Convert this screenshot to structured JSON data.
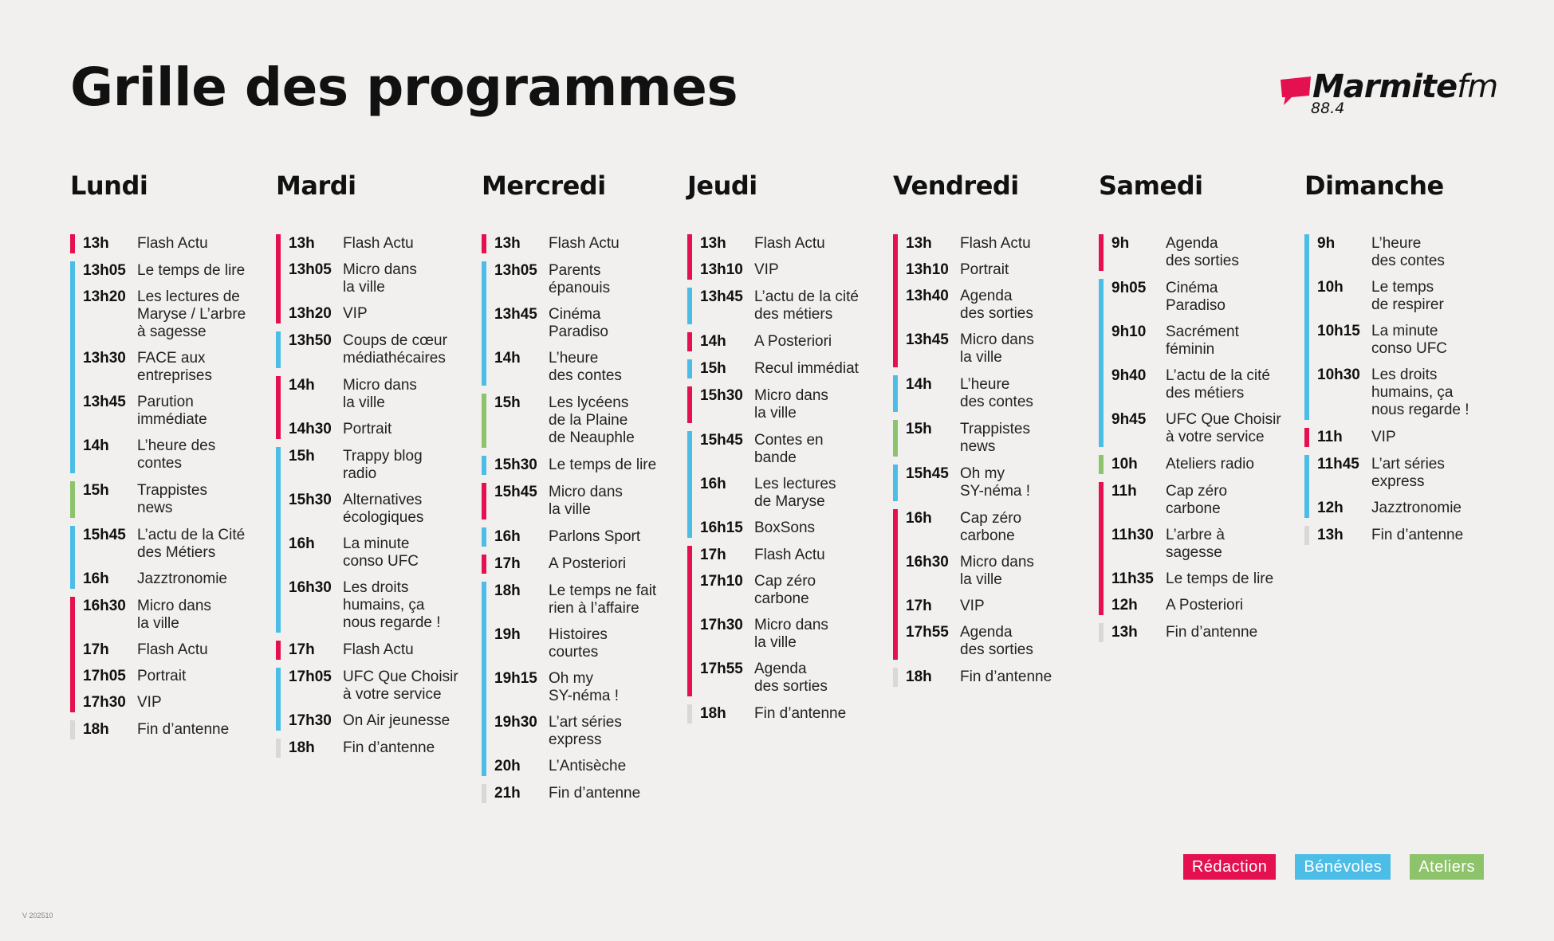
{
  "header": {
    "title": "Grille des programmes",
    "logo_text": "Marmite",
    "logo_fm": "fm",
    "frequency": "88.4"
  },
  "colors": {
    "redaction": "#e4104f",
    "benevoles": "#4cbde7",
    "ateliers": "#8dc46b",
    "fin": "#d8d8d8"
  },
  "days": [
    {
      "name": "Lundi",
      "groups": [
        {
          "cat": "redaction",
          "slots": [
            {
              "time": "13h",
              "title": "Flash Actu"
            }
          ]
        },
        {
          "cat": "benevoles",
          "slots": [
            {
              "time": "13h05",
              "title": "Le temps de lire"
            },
            {
              "time": "13h20",
              "title": "Les lectures de\nMaryse / L’arbre\nà sagesse"
            },
            {
              "time": "13h30",
              "title": "FACE aux\nentreprises"
            },
            {
              "time": "13h45",
              "title": "Parution\nimmédiate"
            },
            {
              "time": "14h",
              "title": "L’heure des\ncontes"
            }
          ]
        },
        {
          "cat": "ateliers",
          "slots": [
            {
              "time": "15h",
              "title": "Trappistes\nnews"
            }
          ]
        },
        {
          "cat": "benevoles",
          "slots": [
            {
              "time": "15h45",
              "title": "L’actu de la Cité\ndes Métiers"
            },
            {
              "time": "16h",
              "title": "Jazztronomie"
            }
          ]
        },
        {
          "cat": "redaction",
          "slots": [
            {
              "time": "16h30",
              "title": "Micro dans\nla ville"
            },
            {
              "time": "17h",
              "title": "Flash Actu"
            },
            {
              "time": "17h05",
              "title": "Portrait"
            },
            {
              "time": "17h30",
              "title": "VIP"
            }
          ]
        },
        {
          "cat": "fin",
          "slots": [
            {
              "time": "18h",
              "title": "Fin d’antenne"
            }
          ]
        }
      ]
    },
    {
      "name": "Mardi",
      "groups": [
        {
          "cat": "redaction",
          "slots": [
            {
              "time": "13h",
              "title": "Flash Actu"
            },
            {
              "time": "13h05",
              "title": "Micro dans\nla ville"
            },
            {
              "time": "13h20",
              "title": "VIP"
            }
          ]
        },
        {
          "cat": "benevoles",
          "slots": [
            {
              "time": "13h50",
              "title": "Coups de cœur\nmédiathécaires"
            }
          ]
        },
        {
          "cat": "redaction",
          "slots": [
            {
              "time": "14h",
              "title": "Micro dans\nla ville"
            },
            {
              "time": "14h30",
              "title": "Portrait"
            }
          ]
        },
        {
          "cat": "benevoles",
          "slots": [
            {
              "time": "15h",
              "title": "Trappy blog\nradio"
            },
            {
              "time": "15h30",
              "title": "Alternatives\nécologiques"
            },
            {
              "time": "16h",
              "title": "La minute\nconso UFC"
            },
            {
              "time": "16h30",
              "title": "Les droits\nhumains, ça\nnous regarde !"
            }
          ]
        },
        {
          "cat": "redaction",
          "slots": [
            {
              "time": "17h",
              "title": "Flash Actu"
            }
          ]
        },
        {
          "cat": "benevoles",
          "slots": [
            {
              "time": "17h05",
              "title": "UFC Que Choisir\nà votre service"
            },
            {
              "time": "17h30",
              "title": "On Air jeunesse"
            }
          ]
        },
        {
          "cat": "fin",
          "slots": [
            {
              "time": "18h",
              "title": "Fin d’antenne"
            }
          ]
        }
      ]
    },
    {
      "name": "Mercredi",
      "groups": [
        {
          "cat": "redaction",
          "slots": [
            {
              "time": "13h",
              "title": "Flash Actu"
            }
          ]
        },
        {
          "cat": "benevoles",
          "slots": [
            {
              "time": "13h05",
              "title": "Parents\népanouis"
            },
            {
              "time": "13h45",
              "title": "Cinéma\nParadiso"
            },
            {
              "time": "14h",
              "title": "L’heure\ndes contes"
            }
          ]
        },
        {
          "cat": "ateliers",
          "slots": [
            {
              "time": "15h",
              "title": "Les lycéens\nde la Plaine\nde Neauphle"
            }
          ]
        },
        {
          "cat": "benevoles",
          "slots": [
            {
              "time": "15h30",
              "title": "Le temps de lire"
            }
          ]
        },
        {
          "cat": "redaction",
          "slots": [
            {
              "time": "15h45",
              "title": "Micro dans\nla ville"
            }
          ]
        },
        {
          "cat": "benevoles",
          "slots": [
            {
              "time": "16h",
              "title": "Parlons Sport"
            }
          ]
        },
        {
          "cat": "redaction",
          "slots": [
            {
              "time": "17h",
              "title": "A Posteriori"
            }
          ]
        },
        {
          "cat": "benevoles",
          "slots": [
            {
              "time": "18h",
              "title": "Le temps ne fait\nrien à l’affaire"
            },
            {
              "time": "19h",
              "title": "Histoires\ncourtes"
            },
            {
              "time": "19h15",
              "title": "Oh my\nSY-néma !"
            },
            {
              "time": "19h30",
              "title": "L’art séries\nexpress"
            },
            {
              "time": "20h",
              "title": "L’Antisèche"
            }
          ]
        },
        {
          "cat": "fin",
          "slots": [
            {
              "time": "21h",
              "title": "Fin d’antenne"
            }
          ]
        }
      ]
    },
    {
      "name": "Jeudi",
      "groups": [
        {
          "cat": "redaction",
          "slots": [
            {
              "time": "13h",
              "title": "Flash Actu"
            },
            {
              "time": "13h10",
              "title": "VIP"
            }
          ]
        },
        {
          "cat": "benevoles",
          "slots": [
            {
              "time": "13h45",
              "title": "L’actu de la cité\ndes métiers"
            }
          ]
        },
        {
          "cat": "redaction",
          "slots": [
            {
              "time": "14h",
              "title": "A Posteriori"
            }
          ]
        },
        {
          "cat": "benevoles",
          "slots": [
            {
              "time": "15h",
              "title": "Recul immédiat"
            }
          ]
        },
        {
          "cat": "redaction",
          "slots": [
            {
              "time": "15h30",
              "title": "Micro dans\nla ville"
            }
          ]
        },
        {
          "cat": "benevoles",
          "slots": [
            {
              "time": "15h45",
              "title": "Contes en\nbande"
            },
            {
              "time": "16h",
              "title": "Les lectures\nde Maryse"
            },
            {
              "time": "16h15",
              "title": "BoxSons"
            }
          ]
        },
        {
          "cat": "redaction",
          "slots": [
            {
              "time": "17h",
              "title": "Flash Actu"
            },
            {
              "time": "17h10",
              "title": "Cap zéro\ncarbone"
            },
            {
              "time": "17h30",
              "title": "Micro dans\nla ville"
            },
            {
              "time": "17h55",
              "title": "Agenda\ndes sorties"
            }
          ]
        },
        {
          "cat": "fin",
          "slots": [
            {
              "time": "18h",
              "title": "Fin d’antenne"
            }
          ]
        }
      ]
    },
    {
      "name": "Vendredi",
      "groups": [
        {
          "cat": "redaction",
          "slots": [
            {
              "time": "13h",
              "title": "Flash Actu"
            },
            {
              "time": "13h10",
              "title": "Portrait"
            },
            {
              "time": "13h40",
              "title": "Agenda\ndes sorties"
            },
            {
              "time": "13h45",
              "title": "Micro dans\nla ville"
            }
          ]
        },
        {
          "cat": "benevoles",
          "slots": [
            {
              "time": "14h",
              "title": "L’heure\ndes contes"
            }
          ]
        },
        {
          "cat": "ateliers",
          "slots": [
            {
              "time": "15h",
              "title": "Trappistes\nnews"
            }
          ]
        },
        {
          "cat": "benevoles",
          "slots": [
            {
              "time": "15h45",
              "title": "Oh my\nSY-néma !"
            }
          ]
        },
        {
          "cat": "redaction",
          "slots": [
            {
              "time": "16h",
              "title": "Cap zéro\ncarbone"
            },
            {
              "time": "16h30",
              "title": "Micro dans\nla ville"
            },
            {
              "time": "17h",
              "title": "VIP"
            },
            {
              "time": "17h55",
              "title": "Agenda\ndes sorties"
            }
          ]
        },
        {
          "cat": "fin",
          "slots": [
            {
              "time": "18h",
              "title": "Fin d’antenne"
            }
          ]
        }
      ]
    },
    {
      "name": "Samedi",
      "groups": [
        {
          "cat": "redaction",
          "slots": [
            {
              "time": "9h",
              "title": "Agenda\ndes sorties"
            }
          ]
        },
        {
          "cat": "benevoles",
          "slots": [
            {
              "time": "9h05",
              "title": "Cinéma\nParadiso"
            },
            {
              "time": "9h10",
              "title": "Sacrément\nféminin"
            },
            {
              "time": "9h40",
              "title": "L’actu de la cité\ndes métiers"
            },
            {
              "time": "9h45",
              "title": "UFC Que Choisir\nà votre service"
            }
          ]
        },
        {
          "cat": "ateliers",
          "slots": [
            {
              "time": "10h",
              "title": "Ateliers radio"
            }
          ]
        },
        {
          "cat": "redaction",
          "slots": [
            {
              "time": "11h",
              "title": "Cap zéro\ncarbone"
            },
            {
              "time": "11h30",
              "title": "L’arbre à\nsagesse"
            },
            {
              "time": "11h35",
              "title": "Le temps de lire"
            },
            {
              "time": "12h",
              "title": "A Posteriori"
            }
          ]
        },
        {
          "cat": "fin",
          "slots": [
            {
              "time": "13h",
              "title": "Fin d’antenne"
            }
          ]
        }
      ]
    },
    {
      "name": "Dimanche",
      "groups": [
        {
          "cat": "benevoles",
          "slots": [
            {
              "time": "9h",
              "title": "L’heure\ndes contes"
            },
            {
              "time": "10h",
              "title": "Le temps\nde respirer"
            },
            {
              "time": "10h15",
              "title": "La minute\nconso UFC"
            },
            {
              "time": "10h30",
              "title": "Les droits\nhumains, ça\nnous regarde !"
            }
          ]
        },
        {
          "cat": "redaction",
          "slots": [
            {
              "time": "11h",
              "title": "VIP"
            }
          ]
        },
        {
          "cat": "benevoles",
          "slots": [
            {
              "time": "11h45",
              "title": "L’art séries\nexpress"
            },
            {
              "time": "12h",
              "title": "Jazztronomie"
            }
          ]
        },
        {
          "cat": "fin",
          "slots": [
            {
              "time": "13h",
              "title": "Fin d’antenne"
            }
          ]
        }
      ]
    }
  ],
  "legend": [
    {
      "cat": "redaction",
      "label": "Rédaction"
    },
    {
      "cat": "benevoles",
      "label": "Bénévoles"
    },
    {
      "cat": "ateliers",
      "label": "Ateliers"
    }
  ],
  "version": "V 202510"
}
